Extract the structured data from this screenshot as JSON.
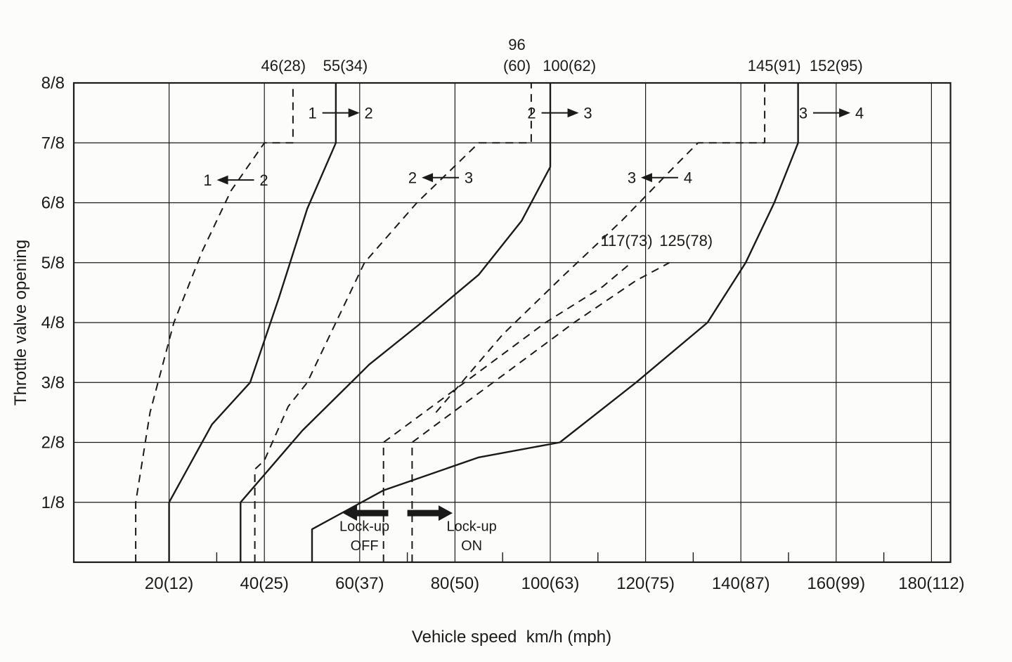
{
  "page": {
    "background": "#fcfcfa",
    "ink": "#1a1a1a"
  },
  "chart_data": {
    "type": "line",
    "title": "",
    "xlabel": "Vehicle speed  km/h (mph)",
    "ylabel": "Throttle valve opening",
    "xlim": [
      0,
      184
    ],
    "ylim_eighths": [
      0,
      8
    ],
    "grid": true,
    "x_gridlines": [
      20,
      40,
      60,
      80,
      100,
      120,
      140,
      160,
      180
    ],
    "x_tick_labels": [
      "20(12)",
      "40(25)",
      "60(37)",
      "80(50)",
      "100(63)",
      "120(75)",
      "140(87)",
      "160(99)",
      "180(112)"
    ],
    "x_minor_ticks": [
      30,
      50,
      70,
      90,
      110,
      130,
      150,
      170
    ],
    "y_gridlines": [
      1,
      2,
      3,
      4,
      5,
      6,
      7,
      8
    ],
    "y_tick_labels": [
      "1/8",
      "2/8",
      "3/8",
      "4/8",
      "5/8",
      "6/8",
      "7/8",
      "8/8"
    ],
    "series": [
      {
        "id": "upshift-1-2",
        "name": "1 to 2 upshift",
        "style": "solid",
        "points": [
          [
            20,
            0
          ],
          [
            20,
            1
          ],
          [
            29,
            2.3
          ],
          [
            37,
            3
          ],
          [
            43,
            4.4
          ],
          [
            49,
            5.9
          ],
          [
            55,
            7
          ],
          [
            55,
            8
          ]
        ]
      },
      {
        "id": "upshift-2-3",
        "name": "2 to 3 upshift",
        "style": "solid",
        "points": [
          [
            35,
            0
          ],
          [
            35,
            1
          ],
          [
            48,
            2.2
          ],
          [
            62,
            3.3
          ],
          [
            73,
            4
          ],
          [
            85,
            4.8
          ],
          [
            94,
            5.7
          ],
          [
            100,
            6.6
          ],
          [
            100,
            8
          ]
        ]
      },
      {
        "id": "upshift-3-4",
        "name": "3 to 4 upshift",
        "style": "solid",
        "points": [
          [
            50,
            0
          ],
          [
            50,
            0.55
          ],
          [
            65,
            1.2
          ],
          [
            85,
            1.75
          ],
          [
            102,
            2
          ],
          [
            118,
            3
          ],
          [
            133,
            4
          ],
          [
            141,
            5
          ],
          [
            147,
            6
          ],
          [
            152,
            7
          ],
          [
            152,
            8
          ]
        ]
      },
      {
        "id": "downshift-2-1",
        "name": "2 to 1 downshift",
        "style": "dashed",
        "points": [
          [
            13,
            0
          ],
          [
            13,
            1
          ],
          [
            16,
            2.5
          ],
          [
            21,
            4
          ],
          [
            27,
            5.2
          ],
          [
            33,
            6.2
          ],
          [
            40,
            7
          ],
          [
            46,
            7
          ],
          [
            46,
            8
          ]
        ]
      },
      {
        "id": "downshift-3-2",
        "name": "3 to 2 downshift",
        "style": "dashed",
        "points": [
          [
            38,
            0
          ],
          [
            38,
            1.55
          ],
          [
            40,
            1.7
          ],
          [
            45,
            2.6
          ],
          [
            49,
            3
          ],
          [
            61,
            5
          ],
          [
            72,
            6
          ],
          [
            85,
            7
          ],
          [
            96,
            7
          ],
          [
            96,
            8
          ]
        ]
      },
      {
        "id": "downshift-4-3",
        "name": "4 to 3 downshift",
        "style": "dashed",
        "points": [
          [
            76,
            2.5
          ],
          [
            90,
            3.8
          ],
          [
            103,
            4.8
          ],
          [
            115,
            5.7
          ],
          [
            126,
            6.6
          ],
          [
            131,
            7
          ],
          [
            145,
            7
          ],
          [
            145,
            8
          ]
        ]
      },
      {
        "id": "lockup-off-line",
        "name": "lock-up off",
        "style": "dashed",
        "points": [
          [
            65,
            0
          ],
          [
            65,
            2
          ],
          [
            82,
            3
          ],
          [
            99,
            4
          ],
          [
            111,
            4.6
          ],
          [
            117,
            5
          ]
        ]
      },
      {
        "id": "lockup-on-line",
        "name": "lock-up on",
        "style": "dashed",
        "points": [
          [
            71,
            0
          ],
          [
            71,
            2
          ],
          [
            88,
            3
          ],
          [
            105,
            4
          ],
          [
            118,
            4.7
          ],
          [
            125,
            5
          ]
        ]
      }
    ],
    "speed_annotations": [
      {
        "text": "46(28)",
        "v": 44,
        "e": 8.2
      },
      {
        "text": "55(34)",
        "v": 57,
        "e": 8.2
      },
      {
        "text": "96",
        "v": 93,
        "e": 8.55
      },
      {
        "text": "(60)",
        "v": 93,
        "e": 8.2
      },
      {
        "text": "100(62)",
        "v": 104,
        "e": 8.2
      },
      {
        "text": "145(91)",
        "v": 147,
        "e": 8.2
      },
      {
        "text": "152(95)",
        "v": 160,
        "e": 8.2
      },
      {
        "text": "117(73)",
        "v": 116,
        "e": 5.28
      },
      {
        "text": "125(78)",
        "v": 128.5,
        "e": 5.28
      }
    ],
    "shift_labels": [
      {
        "from": "1",
        "to": "2",
        "dir": "right",
        "v": 56,
        "e": 7.5
      },
      {
        "from": "2",
        "to": "3",
        "dir": "right",
        "v": 102,
        "e": 7.5
      },
      {
        "from": "3",
        "to": "4",
        "dir": "right",
        "v": 159,
        "e": 7.5
      },
      {
        "from": "1",
        "to": "2",
        "dir": "left",
        "v": 34,
        "e": 6.38
      },
      {
        "from": "2",
        "to": "3",
        "dir": "left",
        "v": 77,
        "e": 6.42
      },
      {
        "from": "3",
        "to": "4",
        "dir": "left",
        "v": 123,
        "e": 6.42
      }
    ],
    "lockup": {
      "off": {
        "lines": [
          "Lock-up",
          "OFF"
        ],
        "text_v": 61,
        "text_e": [
          0.52,
          0.2
        ],
        "arrow_tail_v": 66,
        "arrow_tip_v": 56.5,
        "arrow_e": 0.82
      },
      "on": {
        "lines": [
          "Lock-up",
          "ON"
        ],
        "text_v": 83.5,
        "text_e": [
          0.52,
          0.2
        ],
        "arrow_tail_v": 70,
        "arrow_tip_v": 79.5,
        "arrow_e": 0.82
      }
    },
    "shift_speeds": {
      "upshift_full_throttle": {
        "1-2": "55(34)",
        "2-3": "100(62)",
        "3-4": "152(95)"
      },
      "downshift_full_throttle": {
        "2-1": "46(28)",
        "3-2": "96(60)",
        "4-3": "145(91)"
      },
      "lockup": {
        "off": "117(73)",
        "on": "125(78)"
      }
    }
  }
}
